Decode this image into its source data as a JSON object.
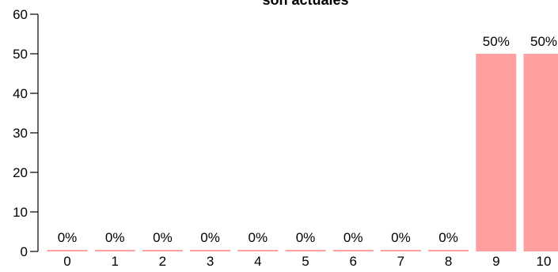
{
  "chart_data": {
    "type": "bar",
    "title": "son actuales",
    "xlabel": "",
    "ylabel": "",
    "categories": [
      "0",
      "1",
      "2",
      "3",
      "4",
      "5",
      "6",
      "7",
      "8",
      "9",
      "10"
    ],
    "values": [
      0,
      0,
      0,
      0,
      0,
      0,
      0,
      0,
      0,
      50,
      50
    ],
    "data_labels": [
      "0%",
      "0%",
      "0%",
      "0%",
      "0%",
      "0%",
      "0%",
      "0%",
      "0%",
      "50%",
      "50%"
    ],
    "ylim": [
      0,
      60
    ],
    "yticks": [
      0,
      10,
      20,
      30,
      40,
      50,
      60
    ],
    "grid": false,
    "bar_color": "#ff9f9f"
  }
}
